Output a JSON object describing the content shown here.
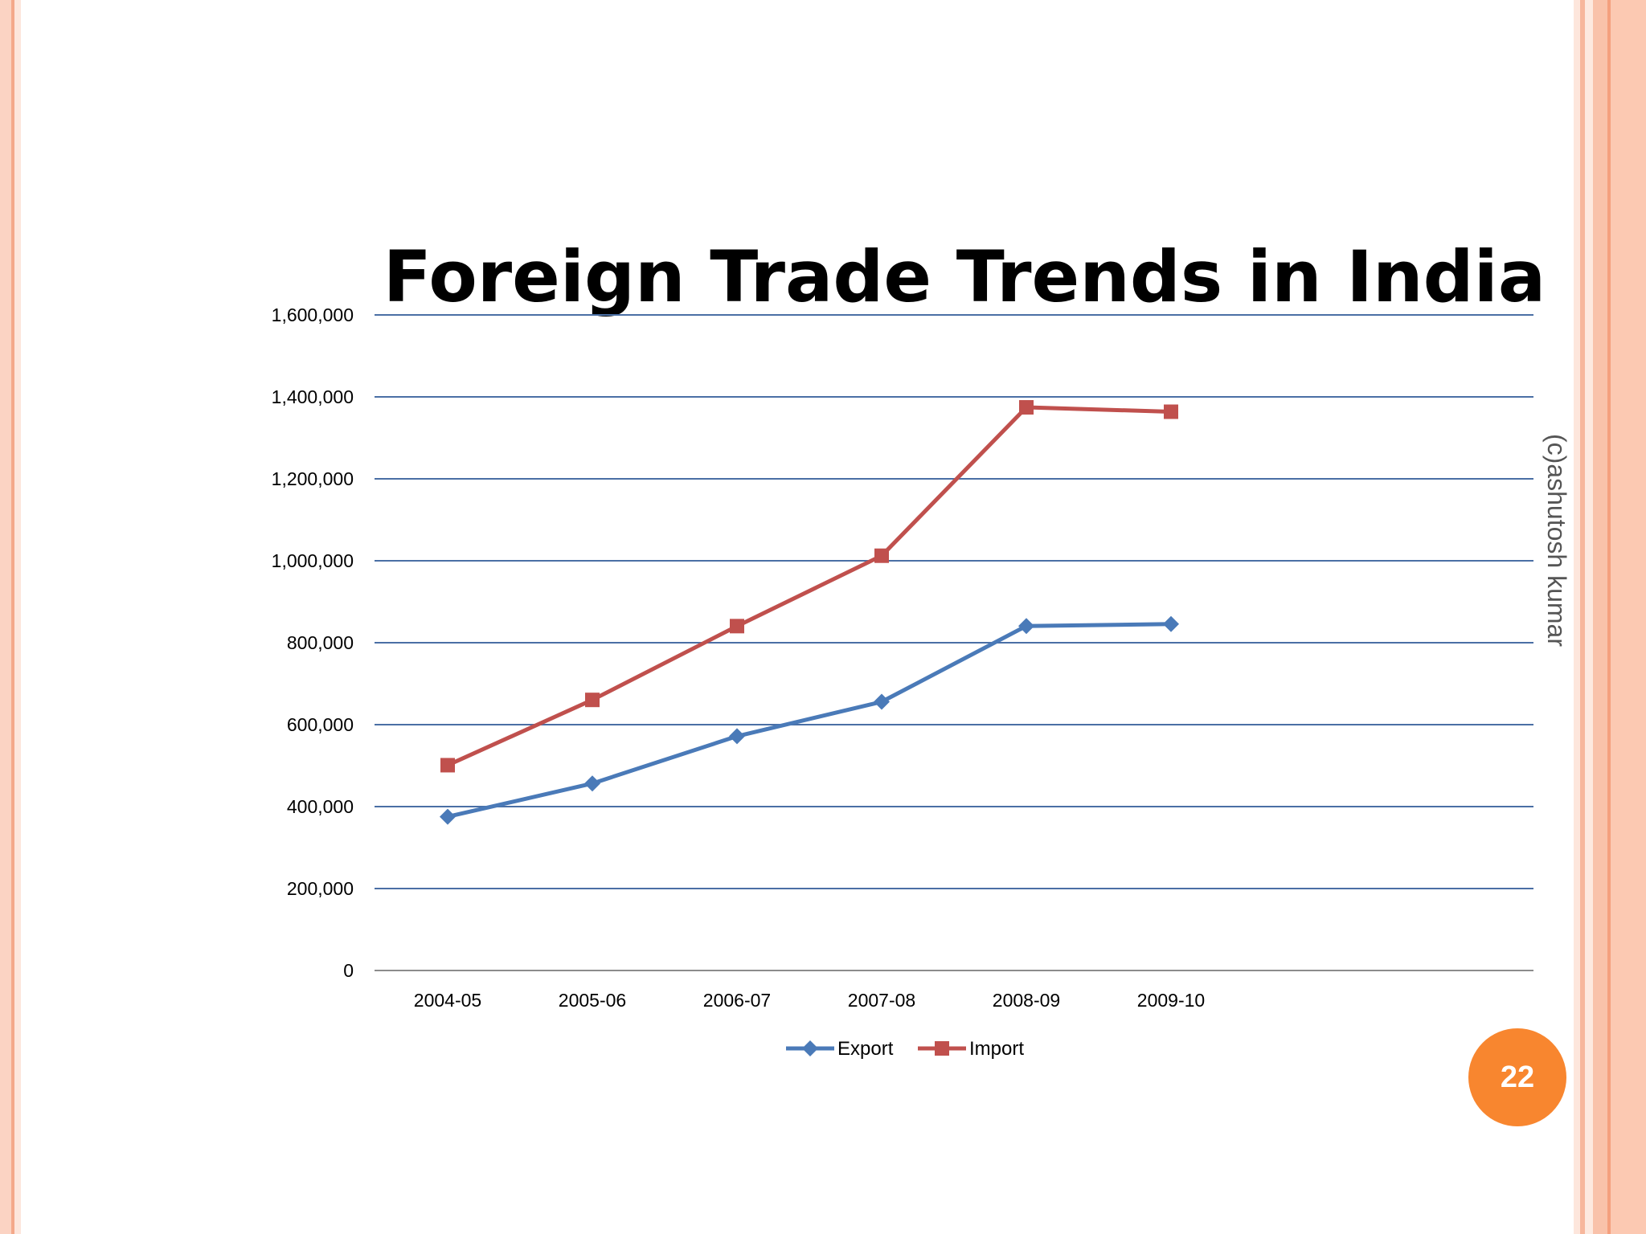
{
  "slide": {
    "watermark": "(c)ashutosh kumar",
    "page_number": "22"
  },
  "colors": {
    "export": "#4a7ab8",
    "import": "#c0504d",
    "gridline": "#4a6fa5",
    "badge": "#f8862f"
  },
  "chart_data": {
    "type": "line",
    "title": "Foreign Trade Trends in India",
    "categories": [
      "2004-05",
      "2005-06",
      "2006-07",
      "2007-08",
      "2008-09",
      "2009-10"
    ],
    "y_ticks": [
      "0",
      "200,000",
      "400,000",
      "600,000",
      "800,000",
      "1,000,000",
      "1,200,000",
      "1,400,000",
      "1,600,000"
    ],
    "ylim": [
      0,
      1600000
    ],
    "grid": true,
    "legend_position": "bottom",
    "series": [
      {
        "name": "Export",
        "values": [
          375340,
          456418,
          571779,
          655864,
          840755,
          845534
        ],
        "marker": "diamond"
      },
      {
        "name": "Import",
        "values": [
          501065,
          660409,
          840506,
          1012312,
          1374436,
          1363736
        ],
        "marker": "square"
      }
    ]
  }
}
